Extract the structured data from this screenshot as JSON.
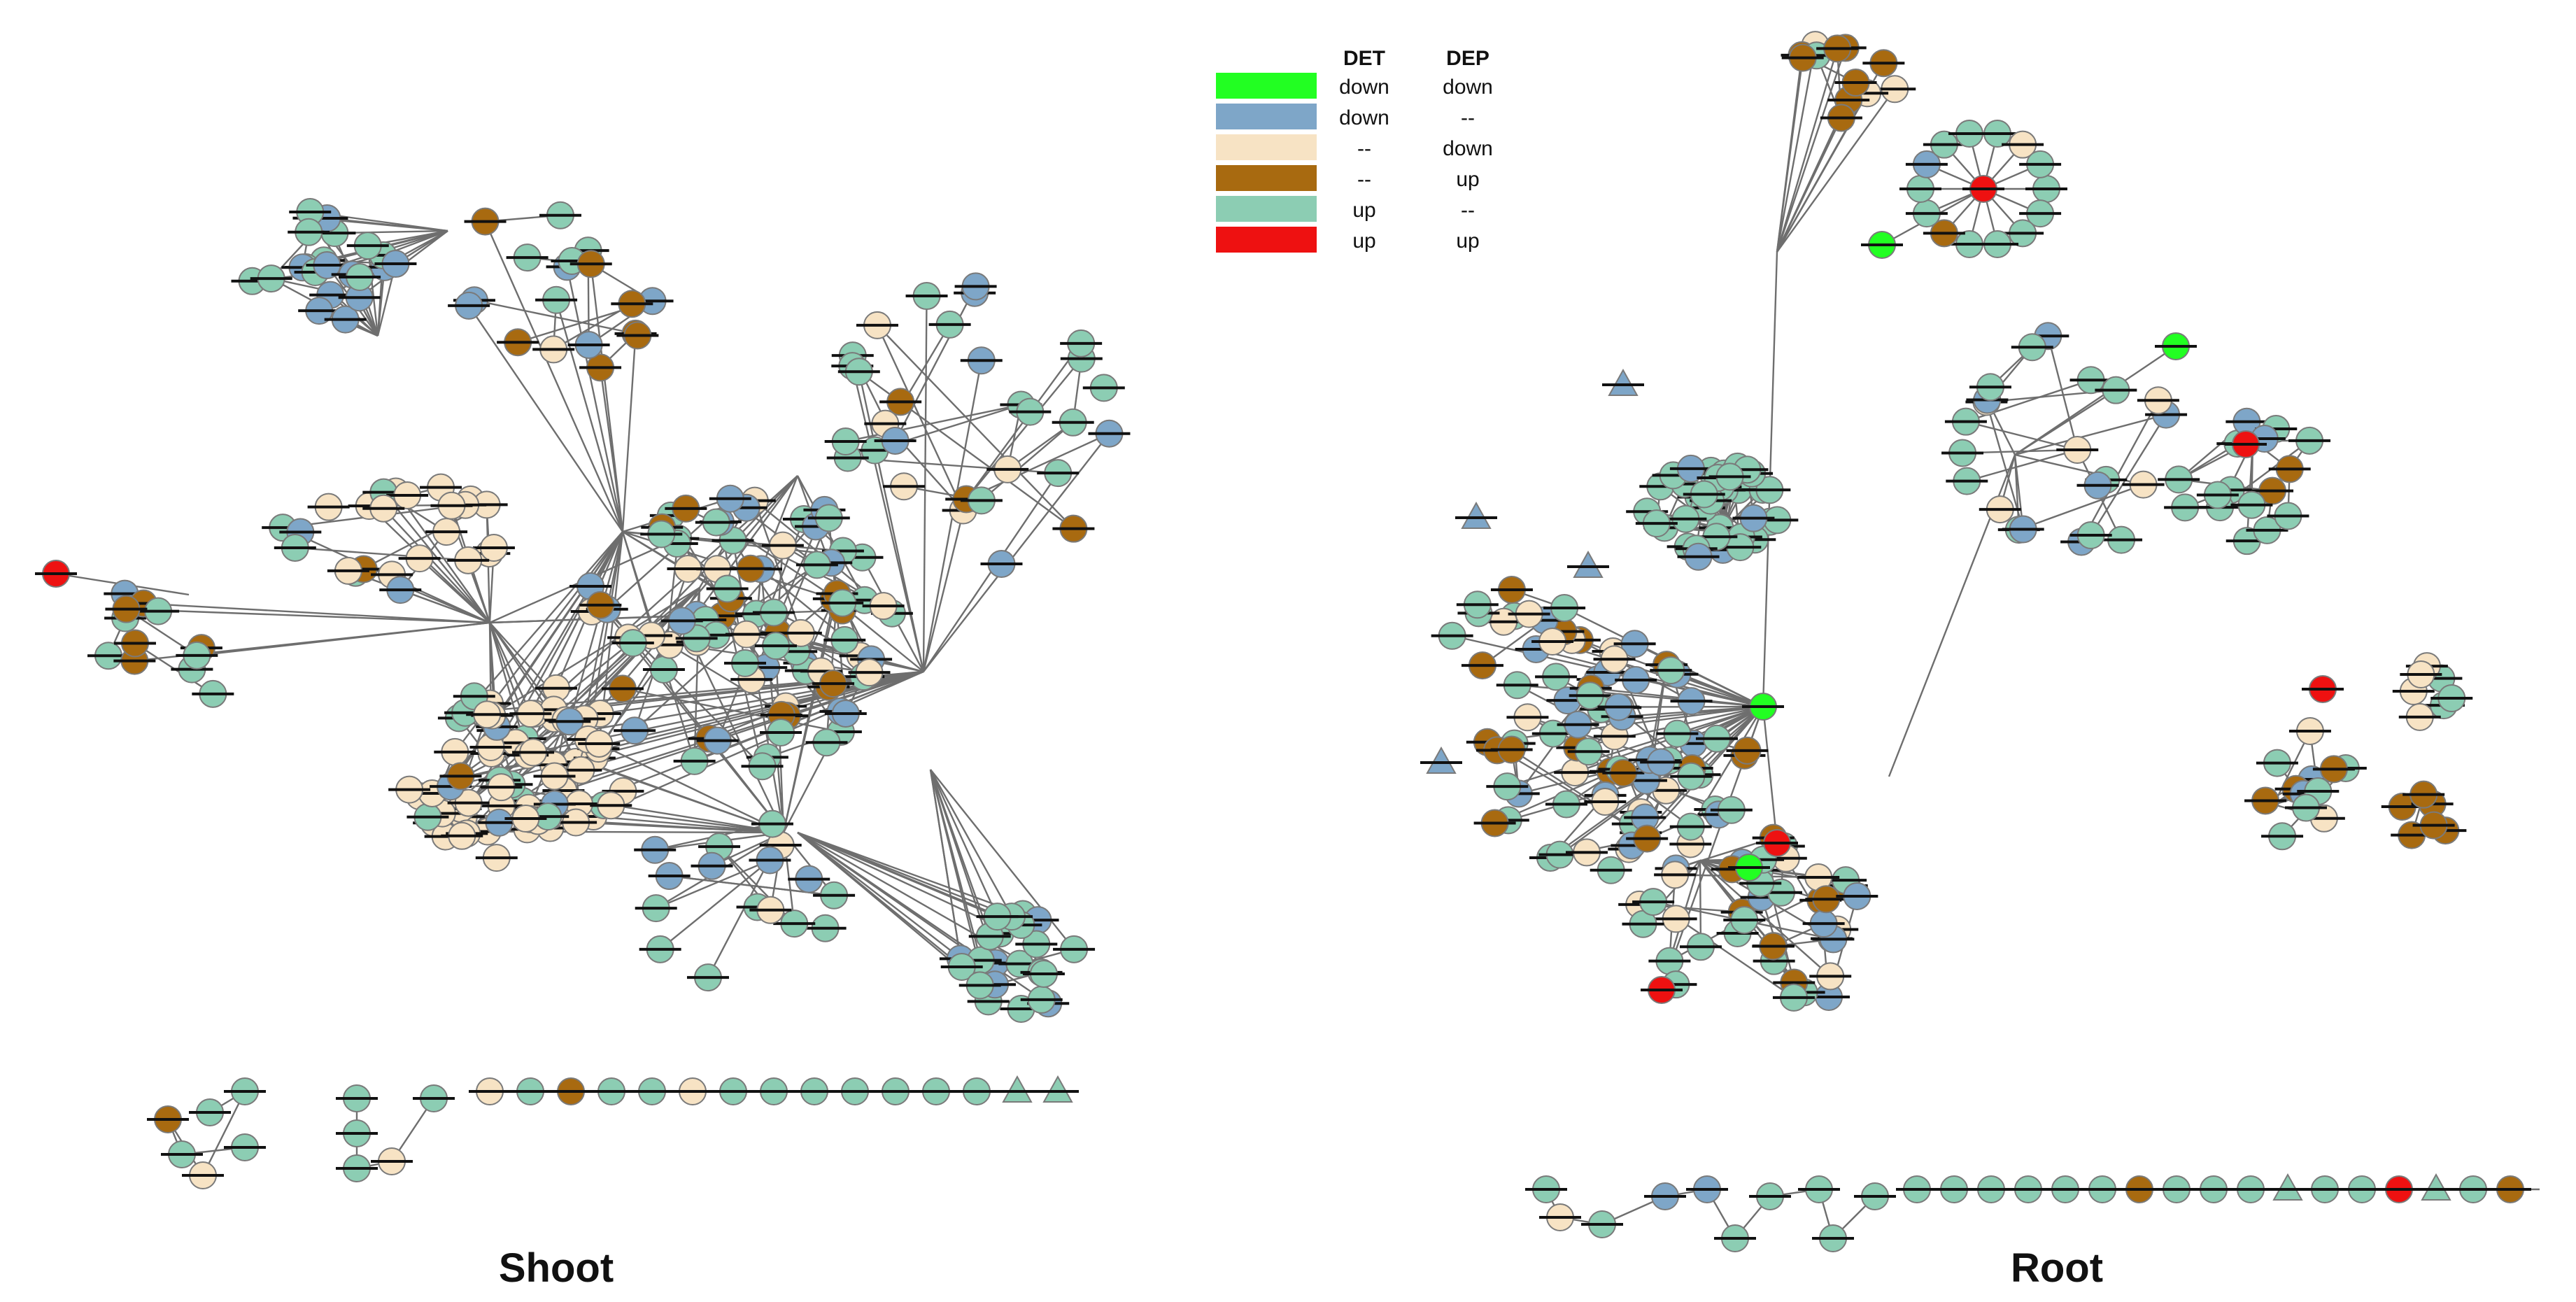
{
  "panels": {
    "shoot": {
      "title": "Shoot"
    },
    "root": {
      "title": "Root"
    }
  },
  "legend": {
    "headers": {
      "det": "DET",
      "dep": "DEP"
    },
    "rows": [
      {
        "category": "det-down-dep-down",
        "color": "#22ff22",
        "det": "down",
        "dep": "down"
      },
      {
        "category": "det-down",
        "color": "#7ea6c8",
        "det": "down",
        "dep": "--"
      },
      {
        "category": "dep-down",
        "color": "#f7e3c4",
        "det": "--",
        "dep": "down"
      },
      {
        "category": "dep-up",
        "color": "#a86a10",
        "det": "--",
        "dep": "up"
      },
      {
        "category": "det-up",
        "color": "#8ccdb3",
        "det": "up",
        "dep": "--"
      },
      {
        "category": "det-up-dep-up",
        "color": "#ee1111",
        "det": "up",
        "dep": "up"
      }
    ]
  }
}
